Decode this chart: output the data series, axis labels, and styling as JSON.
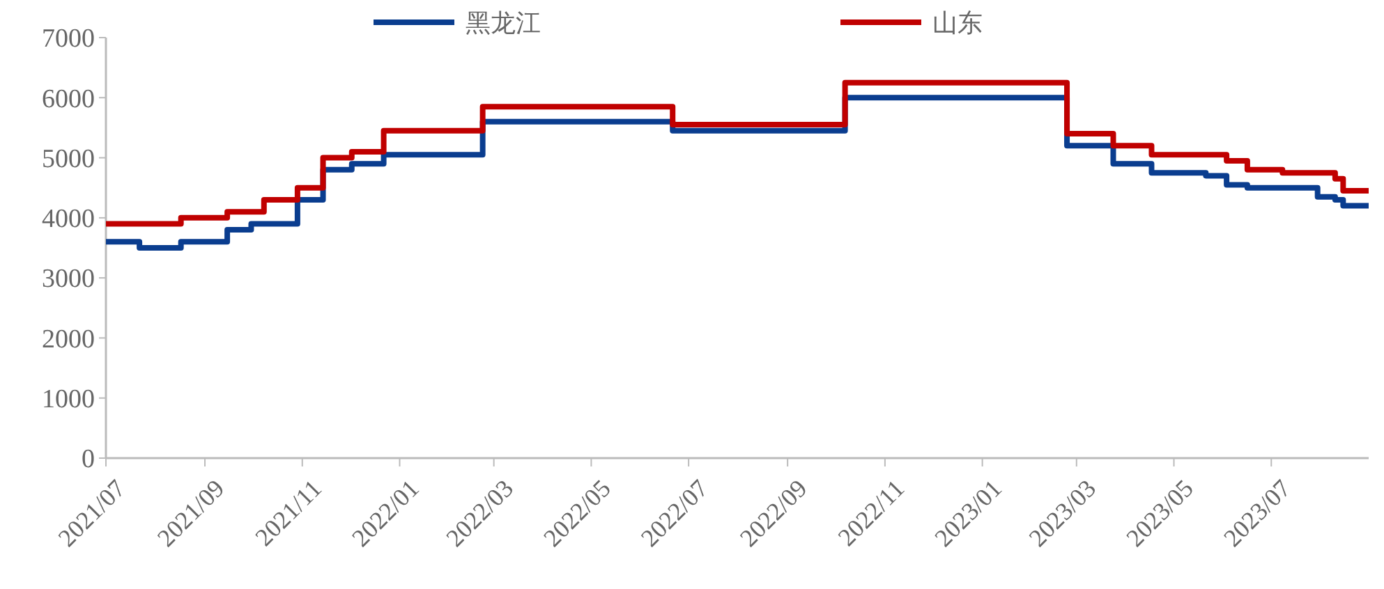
{
  "chart_data": {
    "type": "step",
    "x": [
      "2021-07-01",
      "2021-07-22",
      "2021-08-17",
      "2021-09-15",
      "2021-09-30",
      "2021-10-08",
      "2021-10-29",
      "2021-11-14",
      "2021-12-02",
      "2021-12-22",
      "2022-02-22",
      "2022-06-21",
      "2022-10-07",
      "2023-02-23",
      "2023-03-24",
      "2023-04-17",
      "2023-05-21",
      "2023-06-03",
      "2023-06-16",
      "2023-07-08",
      "2023-07-30",
      "2023-08-10",
      "2023-08-15",
      "2023-08-31"
    ],
    "series": [
      {
        "name": "黑龙江",
        "color": "#0a3d8f",
        "values": [
          3600,
          3500,
          3600,
          3800,
          3900,
          3900,
          4300,
          4800,
          4900,
          5050,
          5600,
          5450,
          6000,
          5200,
          4900,
          4750,
          4700,
          4550,
          4500,
          4500,
          4350,
          4300,
          4200,
          4200
        ]
      },
      {
        "name": "山东",
        "color": "#c00000",
        "values": [
          3900,
          3900,
          4000,
          4100,
          4100,
          4300,
          4500,
          5000,
          5100,
          5450,
          5850,
          5550,
          6250,
          5400,
          5200,
          5050,
          5050,
          4950,
          4800,
          4750,
          4750,
          4650,
          4450,
          4450
        ]
      }
    ],
    "xlim": [
      "2021-07-01",
      "2023-08-31"
    ],
    "xticks": [
      {
        "value": "2021-07-01",
        "label": "2021/07"
      },
      {
        "value": "2021-09-01",
        "label": "2021/09"
      },
      {
        "value": "2021-11-01",
        "label": "2021/11"
      },
      {
        "value": "2022-01-01",
        "label": "2022/01"
      },
      {
        "value": "2022-03-01",
        "label": "2022/03"
      },
      {
        "value": "2022-05-01",
        "label": "2022/05"
      },
      {
        "value": "2022-07-01",
        "label": "2022/07"
      },
      {
        "value": "2022-09-01",
        "label": "2022/09"
      },
      {
        "value": "2022-11-01",
        "label": "2022/11"
      },
      {
        "value": "2023-01-01",
        "label": "2023/01"
      },
      {
        "value": "2023-03-01",
        "label": "2023/03"
      },
      {
        "value": "2023-05-01",
        "label": "2023/05"
      },
      {
        "value": "2023-07-01",
        "label": "2023/07"
      }
    ],
    "ylim": [
      0,
      7000
    ],
    "yticks": [
      0,
      1000,
      2000,
      3000,
      4000,
      5000,
      6000,
      7000
    ],
    "legend": "top",
    "grid": false,
    "marker": "none",
    "line_style": "solid"
  }
}
